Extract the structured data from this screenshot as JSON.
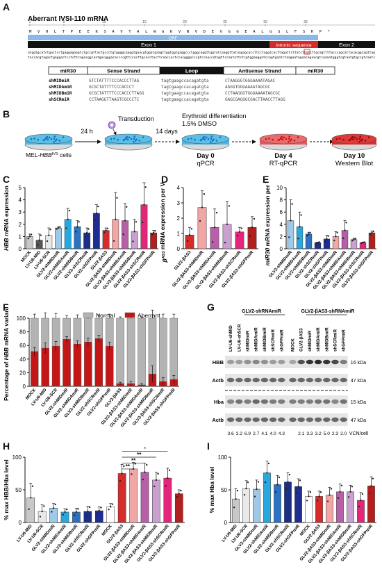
{
  "panel_labels": [
    "A",
    "B",
    "C",
    "D",
    "E",
    "F",
    "G",
    "H",
    "I"
  ],
  "panelA": {
    "title": "Aberrant IVSI-110 mRNA",
    "ruler": [
      "1",
      "5",
      "10",
      "15",
      "20",
      "25",
      "30",
      "35"
    ],
    "aa_seq": "M V H L T P E E K S A V T A L W G K V N V D E V G G E A L G S L F S H P *",
    "orf_label": "ORF",
    "exon1_label": "Exon 1",
    "intronic_label": "Intronic sequence",
    "exon2_label": "Exon 2",
    "dna_top": "atggtgcatctgactcctgaggagaagtctgccgttactgccctgtggggcaaggtgaacgtggatgaagttggtggtgaggccctgggcaggttggtatcaaggttataagagcaccttcctaggtcacttagattcttatcttgtcttgcagttttacccagcattacacggcagttag",
    "dna_bottom": "taccacgtagactgaggactcctcttcagacggcaatgacgggacaccccgttccacttgcacctacttcaaccactccacgggacccgtccaaccatagttccaatattctcgtggaaggatccagtgaatctaagaatagaacagaacgtcaaaatgggtcgtaatgtgccgtcaatc",
    "hairpin_headers": [
      "miR30",
      "Sense Strand",
      "Loop",
      "Antisense Strand",
      "miR30"
    ],
    "constructs": [
      {
        "name": "shMIDmiR",
        "sense": "GTCTATTTTCCCACCCTTAG",
        "loop": "tagtgaagccacagatgta",
        "antisense": "CTAAGGGTGGGAAAATAGAC"
      },
      {
        "name": "shMIDAmiR",
        "sense": "GCGCTATTTTCCCACCCT",
        "loop": "tagtgaagccacagatgta",
        "antisense": "AGGGTGGGAAAATAGCGC"
      },
      {
        "name": "shMIDBmiR",
        "sense": "GCGCTATTTTCCCACCCTTAGG",
        "loop": "tagtgaagccacagatgta",
        "antisense": "CCTAAGGGTGGGAAAATAGCGC"
      },
      {
        "name": "shSCRmiR",
        "sense": "CCTAAGGTTAAGTCGCCCTC",
        "loop": "tagtgaagccacagatgta",
        "antisense": "GAGCGAGGGCGACTTAACCTTAGG"
      }
    ]
  },
  "panelB": {
    "cells_label_pre": "MEL-",
    "cells_label_gene": "HBB",
    "cells_label_sup": "IVS",
    "cells_label_post": " cells",
    "step1": "24 h",
    "transduction": "Transduction",
    "step2": "14 days",
    "diff_line1": "Erythroid differentiation",
    "diff_line2": "1.5% DMSO",
    "days": [
      {
        "day": "Day 0",
        "assay": "qPCR"
      },
      {
        "day": "Day 4",
        "assay": "RT-qPCR"
      },
      {
        "day": "Day 10",
        "assay": "Western Blot"
      }
    ]
  },
  "chart_data": [
    {
      "id": "C",
      "type": "bar",
      "ylabel_italic": "HBB",
      "ylabel_rest": " mRNA expression",
      "ylim": [
        0,
        5
      ],
      "yticks": [
        0,
        1,
        2,
        3,
        4,
        5
      ],
      "categories": [
        "MOCK",
        "LV-U6-MID",
        "LV-U6-SCR",
        "GLV2-shMIDmiR",
        "GLV2-shMIDAmiR",
        "GLV2-shMIDBmiR",
        "GLV2-shSCRmiR",
        "GLV2-shGFPmiR",
        "GLV2-βAS3",
        "GLV2-βAS3-shMIDmiR",
        "GLV2-βAS3-shMIDAmiR",
        "GLV2-βAS3-shMIDBmiR",
        "GLV2-βAS3-shSCRmiR",
        "GLV2-βAS3-shGFPmiR"
      ],
      "values": [
        1.0,
        0.7,
        1.1,
        1.7,
        2.4,
        1.8,
        1.3,
        2.9,
        1.5,
        2.4,
        2.3,
        1.4,
        3.6,
        1.3
      ],
      "errors": [
        0.2,
        0.5,
        0.6,
        0.1,
        0.9,
        0.5,
        0.4,
        0.7,
        0.2,
        2.2,
        1.4,
        1.0,
        1.8,
        0.2
      ]
    },
    {
      "id": "D",
      "type": "bar",
      "ylabel_italic": "β",
      "ylabel_sup": "AS3",
      "ylabel_rest": " mRNA expression per VCN",
      "ylim": [
        0,
        4
      ],
      "yticks": [
        0,
        1,
        2,
        3,
        4
      ],
      "categories": [
        "GLV2-βAS3",
        "GLV2-βAS3-shMIDmiR",
        "GLV2-βAS3-shMIDAmiR",
        "GLV2-βAS3-shMIDBmiR",
        "GLV2-βAS3-shSCRmiR",
        "GLV2-βAS3-shGFPmiR"
      ],
      "values": [
        0.9,
        2.7,
        1.4,
        1.6,
        1.1,
        1.4
      ],
      "errors": [
        0.5,
        1.1,
        1.2,
        1.5,
        0.3,
        0.7
      ]
    },
    {
      "id": "E",
      "type": "bar",
      "ylabel_italic": "miR30",
      "ylabel_rest": " mRNA expression per VCN",
      "ylim": [
        0,
        10
      ],
      "yticks": [
        0,
        2,
        4,
        6,
        8,
        10
      ],
      "categories": [
        "GLV2-shMIDmiR",
        "GLV2-shMIDAmiR",
        "GLV2-shMIDBmiR",
        "GLV2-shSCRmiR",
        "GLV2-shGFPmiR",
        "GLV2-βAS3-shMIDmiR",
        "GLV2-βAS3-shMIDAmiR",
        "GLV2-βAS3-shMIDBmiR",
        "GLV2-βAS3-shSCRmiR",
        "GLV2-βAS3-shGFPmiR"
      ],
      "values": [
        4.6,
        3.6,
        2.4,
        1.0,
        1.6,
        2.0,
        3.0,
        1.5,
        1.0,
        2.6
      ],
      "errors": [
        3.4,
        2.4,
        0.3,
        0.1,
        0.6,
        0.8,
        1.6,
        0.2,
        0.1,
        0.3
      ]
    },
    {
      "id": "F",
      "type": "bar",
      "stacked": true,
      "ylabel_pre": "Percentage of ",
      "ylabel_italic": "HBB",
      "ylabel_rest": " mRNA variants",
      "ylim": [
        0,
        100
      ],
      "yticks": [
        0,
        20,
        40,
        60,
        80,
        100
      ],
      "legend": [
        "Normal",
        "Aberrant"
      ],
      "categories": [
        "MOCK",
        "LV-U6-MID",
        "LV-U6-SCR",
        "GLV2-shMIDmiR",
        "GLV2-shMIDAmiR",
        "GLV2-shMIDBmiR",
        "GLV2-shSCRmiR",
        "GLV2-shGFPmiR",
        "GLV2-βAS3",
        "GLV2-βAS3-shMIDmiR",
        "GLV2-βAS3-shMIDAmiR",
        "GLV2-βAS3-shMIDBmiR",
        "GLV2-βAS3-shSCRmiR",
        "GLV2-βAS3-shGFPmiR"
      ],
      "aberrant": [
        51,
        56,
        59,
        69,
        62,
        65,
        70,
        59,
        4,
        4,
        2,
        18,
        7,
        10
      ],
      "aberrant_err": [
        6,
        8,
        7,
        4,
        5,
        6,
        5,
        6,
        2,
        3,
        2,
        12,
        6,
        6
      ],
      "normal_err": [
        6,
        8,
        7,
        4,
        5,
        6,
        5,
        6,
        2,
        3,
        2,
        12,
        6,
        6
      ]
    },
    {
      "id": "H",
      "type": "bar",
      "ylabel": "% max HBB/Hba level",
      "ylim": [
        0,
        100
      ],
      "yticks": [
        0,
        50,
        100
      ],
      "categories": [
        "LV-U6-MID",
        "LV-U6-SCR",
        "GLV2-shMIDmiR",
        "GLV2-shMIDAmiR",
        "GLV2-shMIDBmiR",
        "GLV2-shSCRmiR",
        "GLV2-shGFPmiR",
        "MOCK",
        "GLV2-βAS3",
        "GLV2-βAS3-shMIDmiR",
        "GLV2-βAS3-shMIDAmiR",
        "GLV2-βAS3-shMIDBmiR",
        "GLV2-βAS3-shSCRmiR",
        "GLV2-βAS3-shGFPmiR"
      ],
      "values": [
        38,
        17,
        22,
        16,
        16,
        17,
        18,
        24,
        75,
        82,
        77,
        65,
        68,
        44
      ],
      "errors": [
        22,
        10,
        7,
        5,
        6,
        8,
        6,
        5,
        14,
        10,
        14,
        12,
        15,
        6
      ],
      "significance": [
        "*",
        "*",
        "**",
        "**",
        "**"
      ]
    },
    {
      "id": "I",
      "type": "bar",
      "ylabel": "% max Hba level",
      "ylim": [
        0,
        100
      ],
      "yticks": [
        0,
        50,
        100
      ],
      "categories": [
        "LV-U6-MID",
        "LV-U6-SCR",
        "GLV2-shMIDmiR",
        "GLV2-shMIDAmiR",
        "GLV2-shMIDBmiR",
        "GLV2-shSCRmiR",
        "GLV2-shGFPmiR",
        "MOCK",
        "GLV2-βAS3",
        "GLV2-βAS3-shMIDmiR",
        "GLV2-βAS3-shMIDAmiR",
        "GLV2-βAS3-shMIDBmiR",
        "GLV2-βAS3-shSCRmiR",
        "GLV2-βAS3-shGFPmiR"
      ],
      "values": [
        36,
        52,
        51,
        76,
        58,
        62,
        55,
        40,
        40,
        42,
        47,
        47,
        34,
        56
      ],
      "errors": [
        16,
        12,
        14,
        18,
        14,
        14,
        12,
        8,
        8,
        12,
        12,
        10,
        12,
        14
      ]
    }
  ],
  "bar_colors": [
    "#c8c8c8",
    "#555555",
    "#e9e9e9",
    "#9ec9e8",
    "#29a8df",
    "#2c72c2",
    "#1b2f87",
    "#1f2d90",
    "#d52b2b",
    "#f2a6a6",
    "#b85fa9",
    "#c9a0cf",
    "#e4267a",
    "#b21f1f"
  ],
  "panelG": {
    "group1": "GLV2-shRNAmiR",
    "group2": "GLV2-βAS3-shRNAmiR",
    "lanes": [
      "LV-U6-shMID",
      "LV-U6-shSCR",
      "shMIDmiR",
      "shMIDAmiR",
      "shMIDBmiR",
      "shSCRmiR",
      "shGFPmiR",
      "MOCK",
      "GLV2-βAS3",
      "shMIDmiR",
      "shMIDAmiR",
      "shMIDBmiR",
      "shSCRmiR",
      "shGFPmiR"
    ],
    "rows": [
      "HBB",
      "Actb",
      "Hba",
      "Actb"
    ],
    "kda": [
      "16 kDa",
      "47 kDa",
      "15 kDa",
      "47 kDa"
    ],
    "vcn": [
      "3.6",
      "3.2",
      "6.9",
      "2.7",
      "4.1",
      "4.0",
      "4.3",
      "",
      "2.1",
      "3.3",
      "3.2",
      "5.0",
      "2.3",
      "2.0"
    ],
    "vcn_label": "VCN/cell"
  }
}
